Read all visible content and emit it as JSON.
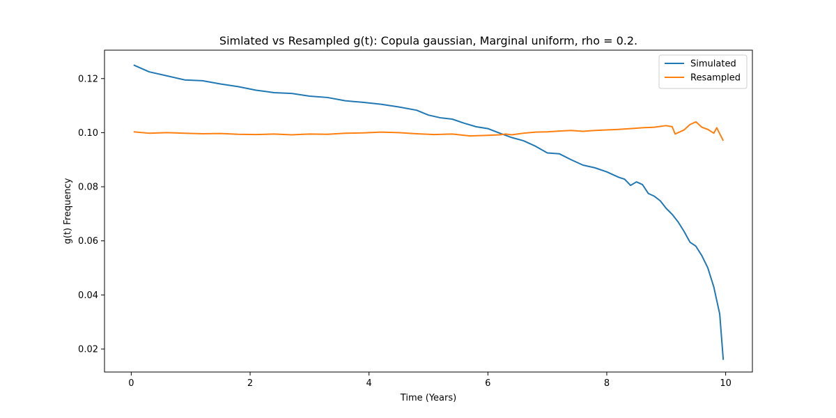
{
  "chart_data": {
    "type": "line",
    "title": "Simlated vs Resampled g(t): Copula gaussian, Marginal uniform, rho =  0.2.",
    "xlabel": "Time (Years)",
    "ylabel": "g(t) Frequency",
    "xlim": [
      -0.45,
      10.45
    ],
    "ylim": [
      0.0115,
      0.1305
    ],
    "xticks": [
      0,
      2,
      4,
      6,
      8,
      10
    ],
    "yticks": [
      0.02,
      0.04,
      0.06,
      0.08,
      0.1,
      0.12
    ],
    "xtick_labels": [
      "0",
      "2",
      "4",
      "6",
      "8",
      "10"
    ],
    "ytick_labels": [
      "0.02",
      "0.04",
      "0.06",
      "0.08",
      "0.10",
      "0.12"
    ],
    "grid": false,
    "legend_position": "top-right",
    "series": [
      {
        "name": "Simulated",
        "color": "#1f77b4",
        "x": [
          0.04,
          0.3,
          0.6,
          0.9,
          1.2,
          1.5,
          1.8,
          2.1,
          2.4,
          2.7,
          3.0,
          3.3,
          3.6,
          3.9,
          4.2,
          4.5,
          4.8,
          5.0,
          5.2,
          5.4,
          5.6,
          5.8,
          6.0,
          6.2,
          6.4,
          6.6,
          6.8,
          7.0,
          7.2,
          7.4,
          7.6,
          7.8,
          8.0,
          8.2,
          8.3,
          8.4,
          8.5,
          8.6,
          8.7,
          8.8,
          8.9,
          9.0,
          9.1,
          9.2,
          9.3,
          9.4,
          9.5,
          9.6,
          9.7,
          9.8,
          9.9,
          9.96
        ],
        "y": [
          0.125,
          0.1225,
          0.121,
          0.1195,
          0.1192,
          0.118,
          0.117,
          0.1157,
          0.1148,
          0.1145,
          0.1135,
          0.113,
          0.1118,
          0.1112,
          0.1105,
          0.1095,
          0.1083,
          0.1065,
          0.1055,
          0.105,
          0.1035,
          0.1022,
          0.1015,
          0.0998,
          0.0982,
          0.097,
          0.095,
          0.0925,
          0.0922,
          0.09,
          0.088,
          0.087,
          0.0855,
          0.0835,
          0.0828,
          0.0805,
          0.0818,
          0.0808,
          0.0775,
          0.0765,
          0.0748,
          0.072,
          0.0698,
          0.067,
          0.0635,
          0.0595,
          0.058,
          0.0545,
          0.05,
          0.043,
          0.033,
          0.016
        ]
      },
      {
        "name": "Resampled",
        "color": "#ff7f0e",
        "x": [
          0.04,
          0.3,
          0.6,
          0.9,
          1.2,
          1.5,
          1.8,
          2.1,
          2.4,
          2.7,
          3.0,
          3.3,
          3.6,
          3.9,
          4.2,
          4.5,
          4.8,
          5.1,
          5.4,
          5.7,
          6.0,
          6.2,
          6.3,
          6.4,
          6.6,
          6.8,
          7.0,
          7.2,
          7.4,
          7.6,
          7.8,
          8.0,
          8.2,
          8.4,
          8.6,
          8.8,
          9.0,
          9.1,
          9.15,
          9.3,
          9.4,
          9.5,
          9.6,
          9.7,
          9.8,
          9.85,
          9.96
        ],
        "y": [
          0.1003,
          0.0998,
          0.1,
          0.0998,
          0.0996,
          0.0997,
          0.0994,
          0.0993,
          0.0995,
          0.0992,
          0.0995,
          0.0994,
          0.0998,
          0.0999,
          0.1002,
          0.1,
          0.0996,
          0.0993,
          0.0995,
          0.0988,
          0.099,
          0.0992,
          0.0995,
          0.0992,
          0.0998,
          0.1002,
          0.1003,
          0.1006,
          0.1008,
          0.1005,
          0.1008,
          0.101,
          0.1012,
          0.1015,
          0.1018,
          0.102,
          0.1026,
          0.1022,
          0.0995,
          0.101,
          0.103,
          0.104,
          0.102,
          0.1012,
          0.0998,
          0.1018,
          0.097
        ]
      }
    ]
  }
}
